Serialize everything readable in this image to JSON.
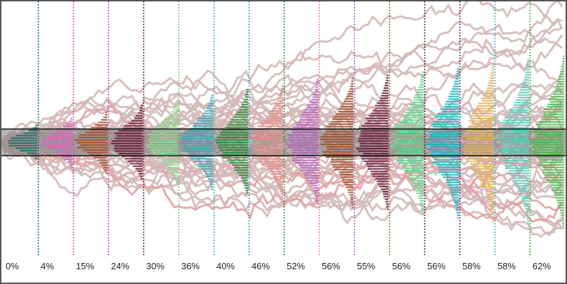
{
  "chart_data": {
    "type": "ridgeline",
    "title": "",
    "xlabel": "",
    "ylabel": "",
    "band": {
      "lower": -1,
      "upper": 1
    },
    "columns": [
      {
        "label": "0%",
        "value": 0,
        "spread": 0.55,
        "color": "#2e6f6b"
      },
      {
        "label": "4%",
        "value": 4,
        "spread": 0.75,
        "color": "#d069b8"
      },
      {
        "label": "15%",
        "value": 15,
        "spread": 0.95,
        "color": "#a0522d"
      },
      {
        "label": "24%",
        "value": 24,
        "spread": 1.15,
        "color": "#6b1e3c"
      },
      {
        "label": "30%",
        "value": 30,
        "spread": 1.3,
        "color": "#8fd694"
      },
      {
        "label": "36%",
        "value": 36,
        "spread": 1.45,
        "color": "#3fa3b5"
      },
      {
        "label": "40%",
        "value": 40,
        "spread": 1.6,
        "color": "#2e8b3a"
      },
      {
        "label": "46%",
        "value": 46,
        "spread": 1.75,
        "color": "#e08f88"
      },
      {
        "label": "52%",
        "value": 52,
        "spread": 1.9,
        "color": "#b366b8"
      },
      {
        "label": "56%",
        "value": 56,
        "spread": 2.0,
        "color": "#a0522d"
      },
      {
        "label": "55%",
        "value": 55,
        "spread": 2.1,
        "color": "#6b1e3c"
      },
      {
        "label": "56%",
        "value": 56,
        "spread": 2.2,
        "color": "#5fd38a"
      },
      {
        "label": "56%",
        "value": 56,
        "spread": 2.3,
        "color": "#20b2c2"
      },
      {
        "label": "58%",
        "value": 58,
        "spread": 2.4,
        "color": "#e3b05a"
      },
      {
        "label": "58%",
        "value": 58,
        "spread": 2.5,
        "color": "#5fc9bb"
      },
      {
        "label": "62%",
        "value": 62,
        "spread": 2.6,
        "color": "#4cb84c"
      }
    ],
    "divider_colors": [
      "#0a6b5a",
      "#c050b0",
      "#c040c0",
      "#6b1e3c",
      "#70c070",
      "#40b0b0",
      "#3399cc",
      "#2e8b3a",
      "#e08090",
      "#b060c0",
      "#9c6a1a",
      "#5a1e46",
      "#5a1a6a",
      "#40b0c0",
      "#3aa63a"
    ],
    "path_color": "#d4b9b9",
    "path_highlight_color": "#e2a3a3",
    "center_band_color": "#7a7a7a"
  }
}
